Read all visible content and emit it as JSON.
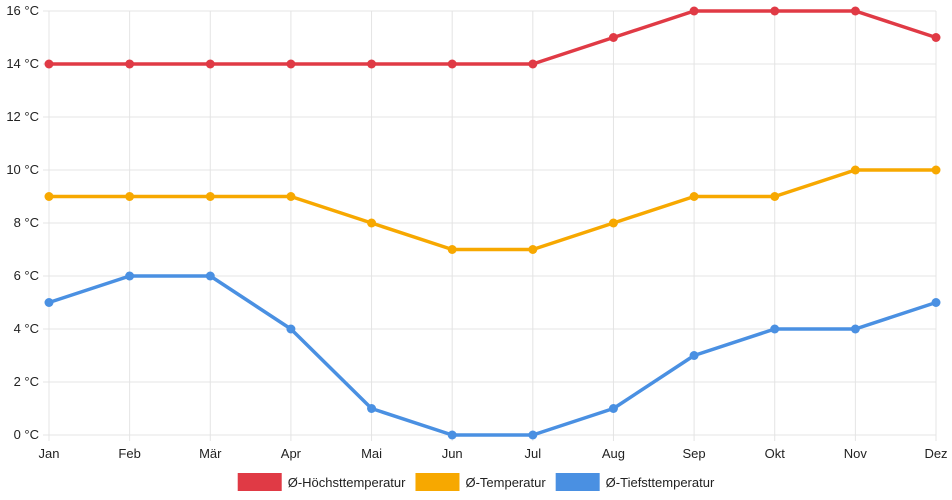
{
  "chart_data": {
    "type": "line",
    "title": "",
    "xlabel": "",
    "ylabel": "",
    "categories": [
      "Jan",
      "Feb",
      "Mär",
      "Apr",
      "Mai",
      "Jun",
      "Jul",
      "Aug",
      "Sep",
      "Okt",
      "Nov",
      "Dez"
    ],
    "ylim": [
      0,
      16
    ],
    "yticks": [
      0,
      2,
      4,
      6,
      8,
      10,
      12,
      14,
      16
    ],
    "y_unit": "°C",
    "grid": true,
    "legend_position": "bottom",
    "series": [
      {
        "name": "Ø-Höchsttemperatur",
        "color": "#e03a45",
        "values": [
          14,
          14,
          14,
          14,
          14,
          14,
          14,
          15,
          16,
          16,
          16,
          15
        ]
      },
      {
        "name": "Ø-Temperatur",
        "color": "#f7a800",
        "values": [
          9,
          9,
          9,
          9,
          8,
          7,
          7,
          8,
          9,
          9,
          10,
          10
        ]
      },
      {
        "name": "Ø-Tiefsttemperatur",
        "color": "#4a90e2",
        "values": [
          5,
          6,
          6,
          4,
          1,
          0,
          0,
          1,
          3,
          4,
          4,
          5
        ]
      }
    ]
  }
}
